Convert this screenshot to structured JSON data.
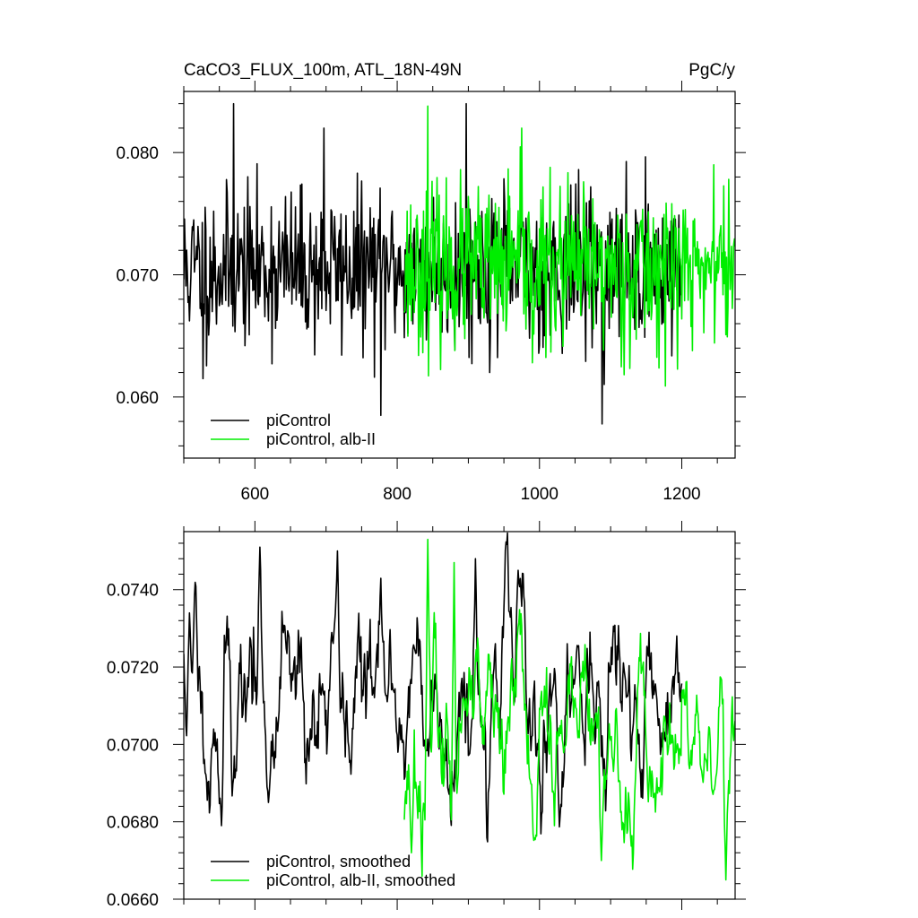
{
  "chart_data": [
    {
      "type": "line",
      "title": "CaCO3_FLUX_100m, ATL_18N-49N",
      "units": "PgC/y",
      "xlabel": "",
      "ylabel": "",
      "xlim": [
        500,
        1275
      ],
      "ylim": [
        0.055,
        0.085
      ],
      "xticks": [
        600,
        800,
        1000,
        1200
      ],
      "xtick_labels": [
        "600",
        "800",
        "1000",
        "1200"
      ],
      "yticks": [
        0.06,
        0.07,
        0.08
      ],
      "ytick_labels": [
        "0.060",
        "0.070",
        "0.080"
      ],
      "grid": false,
      "legend_position": "bottom-left",
      "series": [
        {
          "name": "piControl",
          "color": "#000000",
          "x_range": [
            500,
            1200
          ],
          "mean": 0.0705,
          "spread": 0.0035,
          "smooth_window": 1,
          "seed": 11,
          "extremes": [
            [
              527,
              0.0615
            ],
            [
              570,
              0.084
            ],
            [
              697,
              0.082
            ],
            [
              777,
              0.0585
            ],
            [
              897,
              0.084
            ],
            [
              1088,
              0.0578
            ]
          ]
        },
        {
          "name": "piControl, alb-II",
          "color": "#00ee00",
          "x_range": [
            810,
            1275
          ],
          "mean": 0.0705,
          "spread": 0.0036,
          "smooth_window": 1,
          "seed": 23,
          "extremes": [
            [
              843,
              0.0838
            ],
            [
              975,
              0.082
            ],
            [
              990,
              0.0628
            ],
            [
              1245,
              0.079
            ]
          ]
        }
      ]
    },
    {
      "type": "line",
      "title": "",
      "xlabel": "",
      "ylabel": "",
      "xlim": [
        500,
        1275
      ],
      "ylim": [
        0.066,
        0.0755
      ],
      "xticks": [
        600,
        800,
        1000,
        1200
      ],
      "xtick_labels": [],
      "yticks": [
        0.066,
        0.068,
        0.07,
        0.072,
        0.074
      ],
      "ytick_labels": [
        "0.0660",
        "0.0680",
        "0.0700",
        "0.0720",
        "0.0740"
      ],
      "grid": false,
      "legend_position": "bottom-left",
      "series": [
        {
          "name": "piControl, smoothed",
          "color": "#000000",
          "x_range": [
            500,
            1200
          ],
          "mean": 0.0711,
          "spread": 0.0013,
          "smooth_window": 5,
          "seed": 11,
          "extremes": [
            [
              508,
              0.0734
            ],
            [
              553,
              0.0679
            ],
            [
              607,
              0.0751
            ],
            [
              619,
              0.0685
            ],
            [
              716,
              0.075
            ],
            [
              910,
              0.0748
            ],
            [
              970,
              0.0745
            ]
          ]
        },
        {
          "name": "piControl, alb-II, smoothed",
          "color": "#00ee00",
          "x_range": [
            810,
            1275
          ],
          "mean": 0.0701,
          "spread": 0.0013,
          "smooth_window": 5,
          "seed": 23,
          "extremes": [
            [
              820,
              0.0672
            ],
            [
              843,
              0.0753
            ],
            [
              880,
              0.0747
            ],
            [
              1087,
              0.067
            ],
            [
              1262,
              0.0665
            ]
          ]
        }
      ]
    }
  ]
}
